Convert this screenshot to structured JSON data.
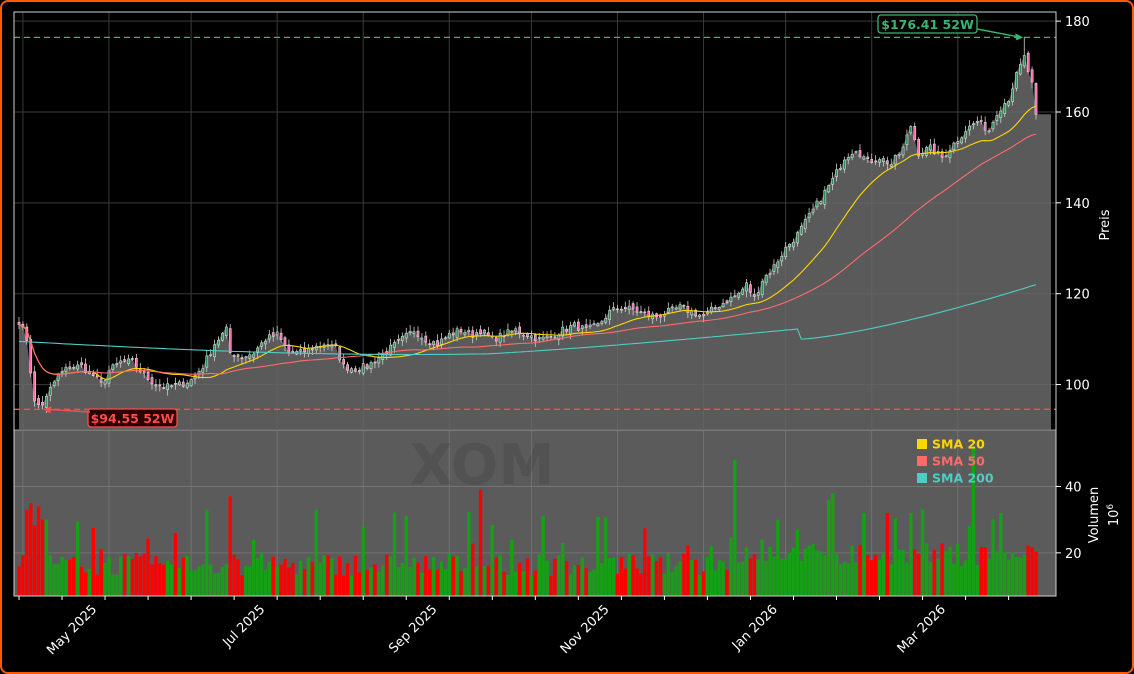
{
  "chart_data": {
    "type": "candlestick",
    "ticker_watermark": "XOM",
    "price_axis": {
      "ylabel": "Preis",
      "ylim": [
        90,
        182
      ],
      "ticks": [
        100,
        120,
        140,
        160,
        180
      ],
      "grid": true
    },
    "volume_axis": {
      "ylabel": "Volumen",
      "unit_label": "10",
      "unit_exponent": "6",
      "ylim": [
        7,
        57
      ],
      "ticks": [
        20,
        40
      ],
      "grid": true
    },
    "x_axis": {
      "tick_labels": [
        "May 2025",
        "Jul 2025",
        "Sep 2025",
        "Nov 2025",
        "Jan 2026",
        "Mar 2026"
      ]
    },
    "legend": {
      "placement": "volume-top-right",
      "entries": [
        {
          "name": "SMA 20",
          "color": "#ffd700"
        },
        {
          "name": "SMA 50",
          "color": "#ff6b6b"
        },
        {
          "name": "SMA 200",
          "color": "#4ecdc4"
        }
      ]
    },
    "annotations": {
      "high": {
        "label": "$176.41 52W",
        "value": 176.41,
        "color": "#3cb371"
      },
      "low": {
        "label": "$94.55 52W",
        "value": 94.55,
        "color": "#ff4c4c"
      }
    },
    "price_anchors": [
      [
        0,
        114
      ],
      [
        2,
        110
      ],
      [
        4,
        96
      ],
      [
        6,
        95
      ],
      [
        8,
        99
      ],
      [
        10,
        102
      ],
      [
        13,
        104
      ],
      [
        16,
        104
      ],
      [
        19,
        102
      ],
      [
        21,
        100
      ],
      [
        23,
        103
      ],
      [
        26,
        105
      ],
      [
        29,
        105
      ],
      [
        32,
        102
      ],
      [
        35,
        100
      ],
      [
        38,
        99.5
      ],
      [
        41,
        100
      ],
      [
        44,
        101
      ],
      [
        47,
        104
      ],
      [
        50,
        109
      ],
      [
        53,
        112
      ],
      [
        54,
        107
      ],
      [
        57,
        106
      ],
      [
        60,
        107
      ],
      [
        63,
        110
      ],
      [
        66,
        111
      ],
      [
        69,
        107
      ],
      [
        72,
        107
      ],
      [
        75,
        108
      ],
      [
        78,
        109
      ],
      [
        81,
        108
      ],
      [
        83,
        104
      ],
      [
        86,
        103.5
      ],
      [
        89,
        104
      ],
      [
        92,
        106
      ],
      [
        95,
        108
      ],
      [
        98,
        110
      ],
      [
        101,
        112
      ],
      [
        104,
        110
      ],
      [
        107,
        109
      ],
      [
        110,
        111
      ],
      [
        113,
        112
      ],
      [
        116,
        111
      ],
      [
        118,
        112
      ],
      [
        121,
        110
      ],
      [
        124,
        111
      ],
      [
        127,
        112
      ],
      [
        130,
        111
      ],
      [
        133,
        110
      ],
      [
        136,
        110.5
      ],
      [
        139,
        112
      ],
      [
        142,
        113
      ],
      [
        145,
        112
      ],
      [
        148,
        113
      ],
      [
        151,
        116
      ],
      [
        154,
        117
      ],
      [
        157,
        116.5
      ],
      [
        160,
        115.5
      ],
      [
        163,
        115
      ],
      [
        166,
        116
      ],
      [
        169,
        117
      ],
      [
        172,
        116
      ],
      [
        175,
        115
      ],
      [
        178,
        117
      ],
      [
        181,
        118.5
      ],
      [
        184,
        120
      ],
      [
        186,
        122
      ],
      [
        188,
        119
      ],
      [
        190,
        123
      ],
      [
        193,
        126
      ],
      [
        196,
        130
      ],
      [
        199,
        133
      ],
      [
        202,
        137
      ],
      [
        205,
        141
      ],
      [
        208,
        145
      ],
      [
        211,
        150
      ],
      [
        214,
        152
      ],
      [
        217,
        149
      ],
      [
        220,
        150
      ],
      [
        223,
        148.5
      ],
      [
        226,
        152
      ],
      [
        228,
        157
      ],
      [
        230,
        151
      ],
      [
        233,
        152
      ],
      [
        236,
        150
      ],
      [
        239,
        153
      ],
      [
        242,
        156
      ],
      [
        245,
        158
      ],
      [
        248,
        156
      ],
      [
        250,
        160
      ],
      [
        253,
        163
      ],
      [
        255,
        168
      ],
      [
        257,
        172
      ],
      [
        259,
        166
      ],
      [
        260,
        159.5
      ]
    ]
  }
}
